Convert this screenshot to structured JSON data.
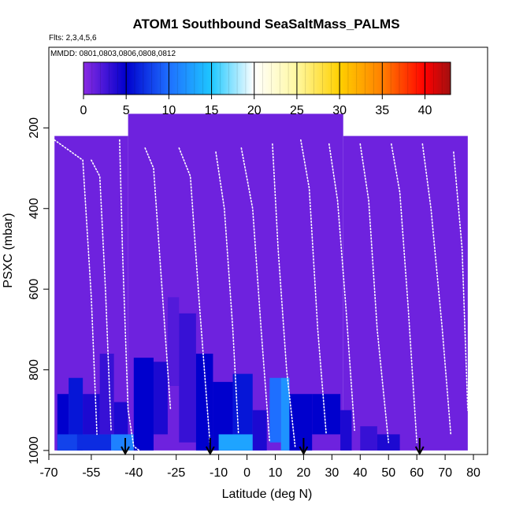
{
  "chart_data": {
    "type": "heatmap",
    "title": "ATOM1 Southbound SeaSaltMass_PALMS",
    "flights_note": "Flts: 2,3,4,5,6",
    "dates_note": "MMDD: 0801,0803,0806,0808,0812",
    "xlabel": "Latitude (deg N)",
    "ylabel": "PSXC (mbar)",
    "xlim": [
      -70,
      85
    ],
    "ylim": [
      1010,
      0
    ],
    "x_ticks": [
      -70,
      -55,
      -40,
      -25,
      -10,
      0,
      10,
      20,
      30,
      40,
      50,
      60,
      70,
      80
    ],
    "x_tick_labels": [
      "-70",
      "-55",
      "-40",
      "-25",
      "-10",
      "0",
      "10",
      "20",
      "30",
      "40",
      "50",
      "60",
      "70",
      "80"
    ],
    "y_ticks": [
      200,
      400,
      600,
      800,
      1000
    ],
    "y_tick_labels": [
      "200",
      "400",
      "600",
      "800",
      "1000"
    ],
    "colorbar": {
      "min": 0,
      "max": 43,
      "ticks": [
        0,
        5,
        10,
        15,
        20,
        25,
        30,
        35,
        40
      ],
      "tick_labels": [
        "0",
        "5",
        "10",
        "15",
        "20",
        "25",
        "30",
        "35",
        "40"
      ],
      "stops": [
        {
          "v": 0,
          "c": "#8a2be2"
        },
        {
          "v": 5,
          "c": "#0000cd"
        },
        {
          "v": 10,
          "c": "#1e6fff"
        },
        {
          "v": 15,
          "c": "#1ec8ff"
        },
        {
          "v": 20,
          "c": "#ffffff"
        },
        {
          "v": 25,
          "c": "#fff8a0"
        },
        {
          "v": 30,
          "c": "#ffd000"
        },
        {
          "v": 35,
          "c": "#ff7f00"
        },
        {
          "v": 40,
          "c": "#ff0000"
        },
        {
          "v": 43,
          "c": "#a01010"
        }
      ]
    },
    "background_value": 1,
    "domains": [
      {
        "lat": [
          -68,
          -42
        ],
        "p": [
          220,
          1000
        ]
      },
      {
        "lat": [
          -42,
          34
        ],
        "p": [
          165,
          1000
        ]
      },
      {
        "lat": [
          34,
          78
        ],
        "p": [
          220,
          1000
        ]
      }
    ],
    "cells": [
      {
        "lat": [
          -67,
          -63
        ],
        "p": [
          860,
          1000
        ],
        "v": 5
      },
      {
        "lat": [
          -63,
          -58
        ],
        "p": [
          820,
          1000
        ],
        "v": 6
      },
      {
        "lat": [
          -58,
          -52
        ],
        "p": [
          860,
          960
        ],
        "v": 4
      },
      {
        "lat": [
          -52,
          -47
        ],
        "p": [
          760,
          960
        ],
        "v": 3
      },
      {
        "lat": [
          -47,
          -42
        ],
        "p": [
          880,
          1000
        ],
        "v": 4
      },
      {
        "lat": [
          -40,
          -33
        ],
        "p": [
          770,
          1000
        ],
        "v": 5
      },
      {
        "lat": [
          -33,
          -28
        ],
        "p": [
          780,
          960
        ],
        "v": 4
      },
      {
        "lat": [
          -28,
          -24
        ],
        "p": [
          620,
          840
        ],
        "v": 2
      },
      {
        "lat": [
          -24,
          -18
        ],
        "p": [
          660,
          980
        ],
        "v": 3
      },
      {
        "lat": [
          -18,
          -12
        ],
        "p": [
          760,
          1000
        ],
        "v": 5
      },
      {
        "lat": [
          -12,
          -5
        ],
        "p": [
          830,
          1000
        ],
        "v": 5
      },
      {
        "lat": [
          -5,
          2
        ],
        "p": [
          810,
          1000
        ],
        "v": 6
      },
      {
        "lat": [
          2,
          7
        ],
        "p": [
          900,
          1000
        ],
        "v": 4
      },
      {
        "lat": [
          -10,
          2
        ],
        "p": [
          960,
          1000
        ],
        "v": 13
      },
      {
        "lat": [
          8,
          12
        ],
        "p": [
          820,
          980
        ],
        "v": 10
      },
      {
        "lat": [
          12,
          15
        ],
        "p": [
          820,
          1000
        ],
        "v": 12
      },
      {
        "lat": [
          15,
          23
        ],
        "p": [
          860,
          1000
        ],
        "v": 5
      },
      {
        "lat": [
          23,
          33
        ],
        "p": [
          860,
          960
        ],
        "v": 5
      },
      {
        "lat": [
          33,
          37
        ],
        "p": [
          900,
          1000
        ],
        "v": 4
      },
      {
        "lat": [
          40,
          46
        ],
        "p": [
          940,
          1000
        ],
        "v": 3
      },
      {
        "lat": [
          46,
          54
        ],
        "p": [
          960,
          1000
        ],
        "v": 4
      },
      {
        "lat": [
          -67,
          -60
        ],
        "p": [
          960,
          1000
        ],
        "v": 8
      },
      {
        "lat": [
          -60,
          -48
        ],
        "p": [
          960,
          1000
        ],
        "v": 7
      },
      {
        "lat": [
          -48,
          -40
        ],
        "p": [
          960,
          1000
        ],
        "v": 11
      }
    ],
    "flight_tracks": [
      {
        "lat": [
          -68,
          -62,
          -58,
          -55,
          -53
        ],
        "p": [
          230,
          260,
          280,
          620,
          960
        ]
      },
      {
        "lat": [
          -55,
          -52,
          -50,
          -48
        ],
        "p": [
          280,
          320,
          600,
          950
        ]
      },
      {
        "lat": [
          -45,
          -44,
          -42,
          -40,
          -38
        ],
        "p": [
          230,
          500,
          900,
          990,
          1000
        ]
      },
      {
        "lat": [
          -36,
          -33,
          -30,
          -27
        ],
        "p": [
          250,
          300,
          600,
          900
        ]
      },
      {
        "lat": [
          -24,
          -20,
          -17,
          -13
        ],
        "p": [
          250,
          320,
          620,
          990
        ]
      },
      {
        "lat": [
          -11,
          -8,
          -5,
          -3
        ],
        "p": [
          260,
          400,
          700,
          960
        ]
      },
      {
        "lat": [
          -2,
          2,
          5,
          8
        ],
        "p": [
          250,
          400,
          700,
          980
        ]
      },
      {
        "lat": [
          9,
          11,
          14,
          17
        ],
        "p": [
          240,
          500,
          800,
          990
        ]
      },
      {
        "lat": [
          19,
          22,
          25,
          28
        ],
        "p": [
          230,
          350,
          700,
          960
        ]
      },
      {
        "lat": [
          29,
          32,
          35,
          38
        ],
        "p": [
          240,
          380,
          650,
          950
        ]
      },
      {
        "lat": [
          40,
          43,
          46,
          50
        ],
        "p": [
          240,
          380,
          700,
          980
        ]
      },
      {
        "lat": [
          51,
          54,
          57,
          60
        ],
        "p": [
          240,
          360,
          650,
          980
        ]
      },
      {
        "lat": [
          62,
          65,
          69,
          72
        ],
        "p": [
          240,
          400,
          700,
          960
        ]
      },
      {
        "lat": [
          73,
          76,
          78
        ],
        "p": [
          260,
          500,
          900
        ]
      }
    ],
    "arrows_lat": [
      -43,
      -13,
      20,
      61
    ]
  }
}
